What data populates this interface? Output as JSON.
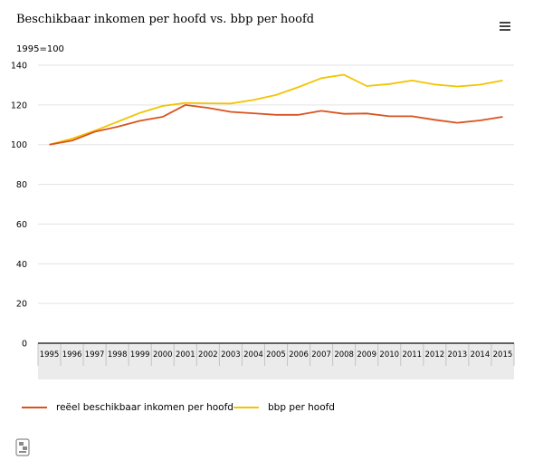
{
  "chart_data": {
    "type": "line",
    "title": "Beschikbaar inkomen per hoofd vs. bbp per hoofd",
    "unit_label": "1995=100",
    "xlabel": "",
    "ylabel": "",
    "ylim": [
      0,
      140
    ],
    "yticks": [
      0,
      20,
      40,
      60,
      80,
      100,
      120,
      140
    ],
    "categories": [
      "1995",
      "1996",
      "1997",
      "1998",
      "1999",
      "2000",
      "2001",
      "2002",
      "2003",
      "2004",
      "2005",
      "2006",
      "2007",
      "2008",
      "2009",
      "2010",
      "2011",
      "2012",
      "2013",
      "2014",
      "2015"
    ],
    "series": [
      {
        "name": "reëel beschikbaar inkomen per hoofd",
        "color": "#d9531e",
        "values": [
          100,
          102,
          106.5,
          109,
          112,
          114,
          120,
          118.5,
          116.5,
          115.8,
          115,
          115,
          117,
          115.5,
          115.7,
          114.3,
          114.3,
          112.5,
          111,
          112.2,
          114
        ]
      },
      {
        "name": "bbp per hoofd",
        "color": "#f3c400",
        "values": [
          100,
          103,
          107,
          111.5,
          116,
          119.5,
          121,
          120.8,
          120.7,
          122.5,
          125,
          129,
          133.5,
          135.2,
          129.5,
          130.5,
          132.3,
          130.3,
          129.3,
          130.2,
          132.3
        ]
      }
    ]
  },
  "toolbar": {
    "menu_icon": "hamburger-menu-icon"
  },
  "footer": {
    "logo_icon": "cbs-logo-icon"
  }
}
